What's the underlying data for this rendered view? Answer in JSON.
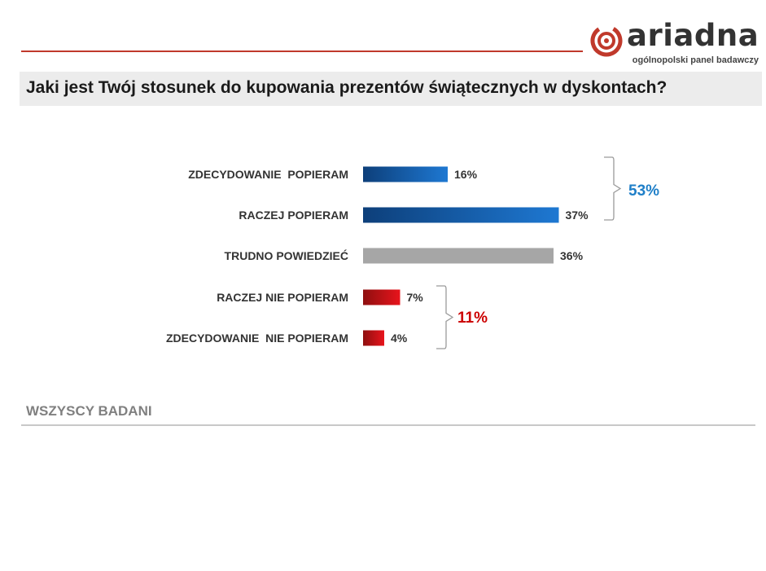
{
  "brand": {
    "name": "ariadna",
    "tagline": "ogólnopolski panel badawczy",
    "color": "#c0392b"
  },
  "question": "Jaki jest Twój stosunek do kupowania prezentów świątecznych w dyskontach?",
  "footer": {
    "base_label": "WSZYSCY BADANI"
  },
  "chart_data": {
    "type": "bar",
    "orientation": "horizontal",
    "categories": [
      "ZDECYDOWANIE  POPIERAM",
      "RACZEJ POPIERAM",
      "TRUDNO POWIEDZIEĆ",
      "RACZEJ NIE POPIERAM",
      "ZDECYDOWANIE  NIE POPIERAM"
    ],
    "values": [
      16,
      37,
      36,
      7,
      4
    ],
    "value_labels": [
      "16%",
      "37%",
      "36%",
      "7%",
      "4%"
    ],
    "bar_groups": [
      "support",
      "support",
      "neutral",
      "oppose",
      "oppose"
    ],
    "colors": {
      "support_dark": "#0d3f7a",
      "support_light": "#1e78d2",
      "neutral": "#a6a6a6",
      "oppose_dark": "#8e0f0f",
      "oppose_light": "#e8141c"
    },
    "brackets": [
      {
        "label": "53%",
        "spans": [
          0,
          1
        ],
        "color": "#1f7fc8"
      },
      {
        "label": "11%",
        "spans": [
          3,
          4
        ],
        "color": "#cc0000"
      }
    ],
    "xlim": [
      0,
      100
    ]
  }
}
